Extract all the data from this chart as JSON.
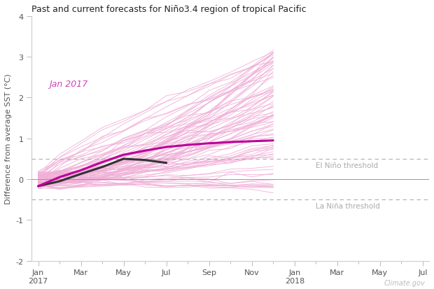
{
  "title": "Past and current forecasts for Niño3.4 region of tropical Pacific",
  "ylabel": "Difference from average SST (°C)",
  "watermark": "Climate.gov",
  "annotation": "Jan 2017",
  "annotation_color": "#cc44bb",
  "el_nino_label": "El Niño threshold",
  "la_nina_label": "La Niña threshold",
  "el_nino_threshold": 0.5,
  "la_nina_threshold": -0.5,
  "ylim": [
    -2,
    4
  ],
  "yticks": [
    -2,
    -1,
    0,
    1,
    2,
    3,
    4
  ],
  "x_tick_labels": [
    "Jan\n2017",
    "Mar",
    "May",
    "Jul",
    "Sep",
    "Nov",
    "Jan\n2018",
    "Mar",
    "May",
    "Jul"
  ],
  "xtick_pos": [
    0,
    2,
    4,
    6,
    8,
    10,
    12,
    14,
    16,
    18
  ],
  "light_pink": "#f0b0d8",
  "dark_magenta": "#bb0099",
  "observed_color": "#333333",
  "background_color": "#ffffff",
  "threshold_color": "#b0b0b0",
  "zero_line_color": "#999999",
  "threshold_label_color": "#aaaaaa",
  "num_pink_lines": 85,
  "seed": 42,
  "xlim": [
    -0.3,
    18.3
  ],
  "pink_end_x": 11,
  "forecast_end_x": 11,
  "observed_end_x": 6
}
